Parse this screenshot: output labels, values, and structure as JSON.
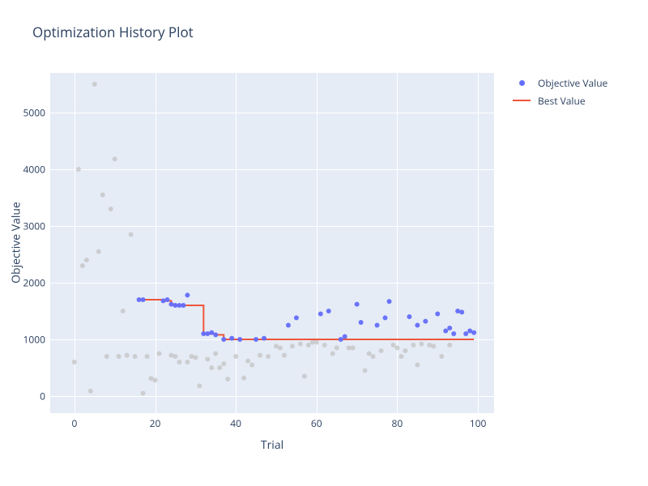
{
  "title": "Optimization History Plot",
  "x_axis_label": "Trial",
  "y_axis_label": "Objective Value",
  "legend": {
    "objective_label": "Objective Value",
    "best_label": "Best Value"
  },
  "chart": {
    "type": "scatter+line",
    "background_color": "#e5ecf6",
    "grid_color": "#ffffff",
    "plot_bgcolor": "#ffffff",
    "font_color": "#2a3f5f",
    "xlim": [
      -6,
      104
    ],
    "ylim": [
      -300,
      5700
    ],
    "xticks": [
      0,
      20,
      40,
      60,
      80,
      100
    ],
    "yticks": [
      0,
      1000,
      2000,
      3000,
      4000,
      5000
    ],
    "marker_size": 6,
    "line_width": 2,
    "objective_color": "#636efa",
    "gray_color": "#c3c3c3",
    "best_line_color": "#ef553b",
    "gray_points": [
      {
        "x": 0,
        "y": 600
      },
      {
        "x": 1,
        "y": 4000
      },
      {
        "x": 2,
        "y": 2300
      },
      {
        "x": 3,
        "y": 2400
      },
      {
        "x": 4,
        "y": 90
      },
      {
        "x": 5,
        "y": 5500
      },
      {
        "x": 6,
        "y": 2550
      },
      {
        "x": 7,
        "y": 3550
      },
      {
        "x": 8,
        "y": 700
      },
      {
        "x": 9,
        "y": 3300
      },
      {
        "x": 10,
        "y": 4180
      },
      {
        "x": 11,
        "y": 700
      },
      {
        "x": 12,
        "y": 1500
      },
      {
        "x": 13,
        "y": 720
      },
      {
        "x": 14,
        "y": 2850
      },
      {
        "x": 15,
        "y": 700
      },
      {
        "x": 17,
        "y": 50
      },
      {
        "x": 18,
        "y": 700
      },
      {
        "x": 19,
        "y": 310
      },
      {
        "x": 20,
        "y": 280
      },
      {
        "x": 21,
        "y": 750
      },
      {
        "x": 24,
        "y": 720
      },
      {
        "x": 25,
        "y": 700
      },
      {
        "x": 26,
        "y": 600
      },
      {
        "x": 28,
        "y": 600
      },
      {
        "x": 29,
        "y": 700
      },
      {
        "x": 30,
        "y": 680
      },
      {
        "x": 31,
        "y": 180
      },
      {
        "x": 33,
        "y": 650
      },
      {
        "x": 34,
        "y": 500
      },
      {
        "x": 35,
        "y": 750
      },
      {
        "x": 36,
        "y": 500
      },
      {
        "x": 37,
        "y": 570
      },
      {
        "x": 38,
        "y": 300
      },
      {
        "x": 40,
        "y": 700
      },
      {
        "x": 42,
        "y": 320
      },
      {
        "x": 43,
        "y": 620
      },
      {
        "x": 44,
        "y": 550
      },
      {
        "x": 46,
        "y": 720
      },
      {
        "x": 48,
        "y": 700
      },
      {
        "x": 50,
        "y": 880
      },
      {
        "x": 51,
        "y": 850
      },
      {
        "x": 52,
        "y": 720
      },
      {
        "x": 54,
        "y": 880
      },
      {
        "x": 56,
        "y": 920
      },
      {
        "x": 57,
        "y": 350
      },
      {
        "x": 58,
        "y": 900
      },
      {
        "x": 59,
        "y": 950
      },
      {
        "x": 60,
        "y": 950
      },
      {
        "x": 62,
        "y": 900
      },
      {
        "x": 64,
        "y": 750
      },
      {
        "x": 65,
        "y": 850
      },
      {
        "x": 68,
        "y": 850
      },
      {
        "x": 69,
        "y": 850
      },
      {
        "x": 72,
        "y": 450
      },
      {
        "x": 73,
        "y": 750
      },
      {
        "x": 74,
        "y": 700
      },
      {
        "x": 76,
        "y": 800
      },
      {
        "x": 79,
        "y": 900
      },
      {
        "x": 80,
        "y": 850
      },
      {
        "x": 81,
        "y": 700
      },
      {
        "x": 82,
        "y": 800
      },
      {
        "x": 84,
        "y": 900
      },
      {
        "x": 85,
        "y": 550
      },
      {
        "x": 86,
        "y": 920
      },
      {
        "x": 88,
        "y": 900
      },
      {
        "x": 89,
        "y": 880
      },
      {
        "x": 91,
        "y": 700
      },
      {
        "x": 93,
        "y": 900
      }
    ],
    "blue_points": [
      {
        "x": 16,
        "y": 1700
      },
      {
        "x": 17,
        "y": 1700
      },
      {
        "x": 22,
        "y": 1680
      },
      {
        "x": 23,
        "y": 1700
      },
      {
        "x": 24,
        "y": 1620
      },
      {
        "x": 25,
        "y": 1600
      },
      {
        "x": 26,
        "y": 1600
      },
      {
        "x": 27,
        "y": 1600
      },
      {
        "x": 28,
        "y": 1780
      },
      {
        "x": 32,
        "y": 1100
      },
      {
        "x": 33,
        "y": 1100
      },
      {
        "x": 34,
        "y": 1120
      },
      {
        "x": 35,
        "y": 1080
      },
      {
        "x": 37,
        "y": 1000
      },
      {
        "x": 39,
        "y": 1020
      },
      {
        "x": 41,
        "y": 1000
      },
      {
        "x": 45,
        "y": 1000
      },
      {
        "x": 47,
        "y": 1020
      },
      {
        "x": 53,
        "y": 1250
      },
      {
        "x": 55,
        "y": 1380
      },
      {
        "x": 61,
        "y": 1450
      },
      {
        "x": 63,
        "y": 1500
      },
      {
        "x": 66,
        "y": 1000
      },
      {
        "x": 67,
        "y": 1050
      },
      {
        "x": 70,
        "y": 1620
      },
      {
        "x": 71,
        "y": 1300
      },
      {
        "x": 75,
        "y": 1250
      },
      {
        "x": 77,
        "y": 1380
      },
      {
        "x": 78,
        "y": 1670
      },
      {
        "x": 83,
        "y": 1400
      },
      {
        "x": 85,
        "y": 1250
      },
      {
        "x": 87,
        "y": 1320
      },
      {
        "x": 90,
        "y": 1450
      },
      {
        "x": 92,
        "y": 1150
      },
      {
        "x": 93,
        "y": 1200
      },
      {
        "x": 94,
        "y": 1100
      },
      {
        "x": 95,
        "y": 1500
      },
      {
        "x": 96,
        "y": 1480
      },
      {
        "x": 97,
        "y": 1100
      },
      {
        "x": 98,
        "y": 1150
      },
      {
        "x": 99,
        "y": 1120
      }
    ],
    "best_line": [
      {
        "x": 16,
        "y": 1700
      },
      {
        "x": 22,
        "y": 1700
      },
      {
        "x": 22,
        "y": 1680
      },
      {
        "x": 24,
        "y": 1680
      },
      {
        "x": 24,
        "y": 1620
      },
      {
        "x": 25,
        "y": 1620
      },
      {
        "x": 25,
        "y": 1600
      },
      {
        "x": 32,
        "y": 1600
      },
      {
        "x": 32,
        "y": 1100
      },
      {
        "x": 35,
        "y": 1100
      },
      {
        "x": 35,
        "y": 1080
      },
      {
        "x": 37,
        "y": 1080
      },
      {
        "x": 37,
        "y": 1000
      },
      {
        "x": 99,
        "y": 1000
      }
    ]
  }
}
